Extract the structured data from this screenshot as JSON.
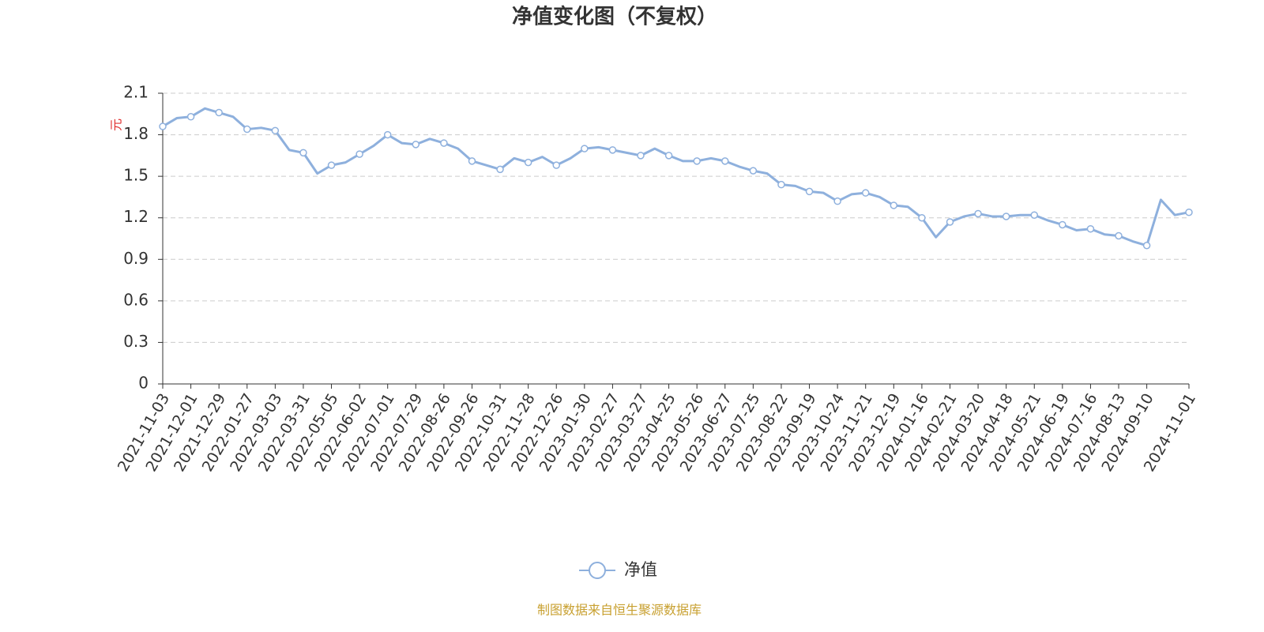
{
  "chart_data": {
    "type": "line",
    "title": "净值变化图（不复权）",
    "ylabel": "元",
    "source": "制图数据来自恒生聚源数据库",
    "categories": [
      "2021-11-03",
      null,
      "2021-12-01",
      null,
      "2021-12-29",
      null,
      "2022-01-27",
      null,
      "2022-03-03",
      null,
      "2022-03-31",
      null,
      "2022-05-05",
      null,
      "2022-06-02",
      null,
      "2022-07-01",
      null,
      "2022-07-29",
      null,
      "2022-08-26",
      null,
      "2022-09-26",
      null,
      "2022-10-31",
      null,
      "2022-11-28",
      null,
      "2022-12-26",
      null,
      "2023-01-30",
      null,
      "2023-02-27",
      null,
      "2023-03-27",
      null,
      "2023-04-25",
      null,
      "2023-05-26",
      null,
      "2023-06-27",
      null,
      "2023-07-25",
      null,
      "2023-08-22",
      null,
      "2023-09-19",
      null,
      "2023-10-24",
      null,
      "2023-11-21",
      null,
      "2023-12-19",
      null,
      "2024-01-16",
      null,
      "2024-02-21",
      null,
      "2024-03-20",
      null,
      "2024-04-18",
      null,
      "2024-05-21",
      null,
      "2024-06-19",
      null,
      "2024-07-16",
      null,
      "2024-08-13",
      null,
      "2024-09-10",
      null,
      null,
      "2024-11-01"
    ],
    "series": [
      {
        "name": "净值",
        "color": "#8eb0dd",
        "values": [
          1.86,
          1.92,
          1.93,
          1.99,
          1.96,
          1.93,
          1.84,
          1.85,
          1.83,
          1.69,
          1.67,
          1.52,
          1.58,
          1.6,
          1.66,
          1.72,
          1.8,
          1.74,
          1.73,
          1.77,
          1.74,
          1.7,
          1.61,
          1.58,
          1.55,
          1.63,
          1.6,
          1.64,
          1.58,
          1.63,
          1.7,
          1.71,
          1.69,
          1.67,
          1.65,
          1.7,
          1.65,
          1.61,
          1.61,
          1.63,
          1.61,
          1.57,
          1.54,
          1.52,
          1.44,
          1.43,
          1.39,
          1.38,
          1.32,
          1.37,
          1.38,
          1.35,
          1.29,
          1.28,
          1.2,
          1.06,
          1.17,
          1.21,
          1.23,
          1.21,
          1.21,
          1.22,
          1.22,
          1.18,
          1.15,
          1.11,
          1.12,
          1.08,
          1.07,
          1.03,
          1.0,
          1.33,
          1.22,
          1.24
        ]
      }
    ],
    "ylim": [
      0,
      2.1
    ],
    "yticks": [
      0,
      0.3,
      0.6,
      0.9,
      1.2,
      1.5,
      1.8,
      2.1
    ],
    "grid": true,
    "legend": "bottom"
  }
}
